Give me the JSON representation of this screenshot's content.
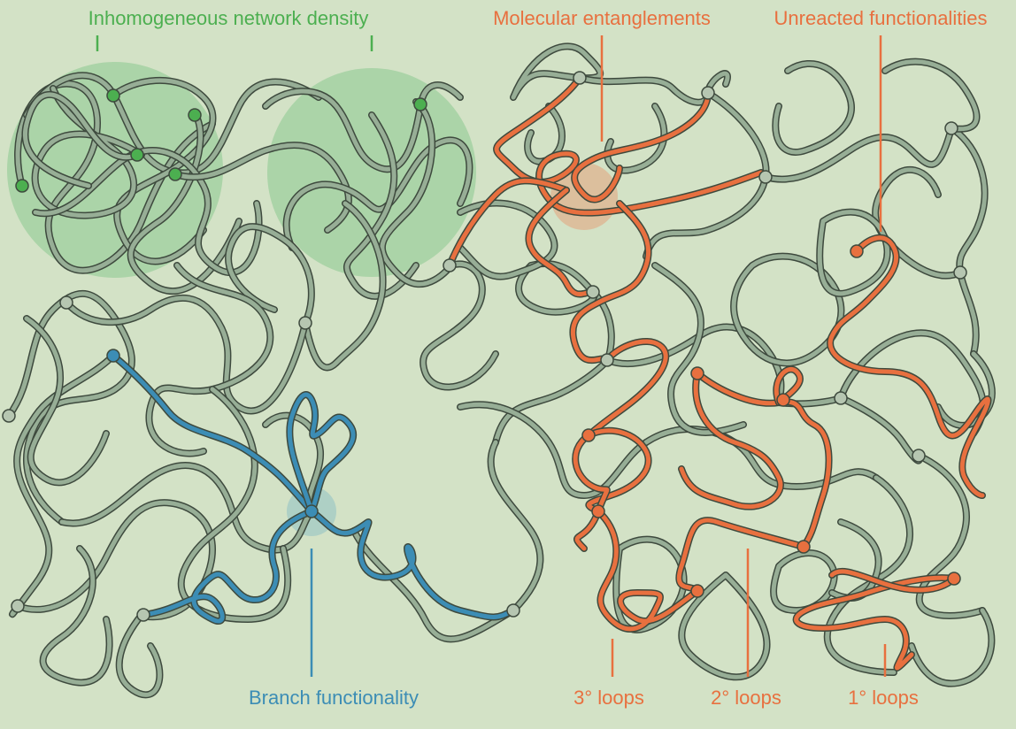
{
  "labels": {
    "inhomogeneous": "Inhomogeneous network density",
    "entanglements": "Molecular entanglements",
    "unreacted": "Unreacted functionalities",
    "branch": "Branch functionality",
    "loops3": "3° loops",
    "loops2": "2° loops",
    "loops1": "1° loops"
  },
  "colors": {
    "background": "#d3e2c6",
    "network_strand": "#97ae96",
    "strand_outline": "#3e4a3e",
    "density_region": "#79c483",
    "green_label": "#4caf50",
    "orange_label": "#e8703f",
    "blue_label": "#3c8db5",
    "node_gray": "#b6c6b1"
  }
}
